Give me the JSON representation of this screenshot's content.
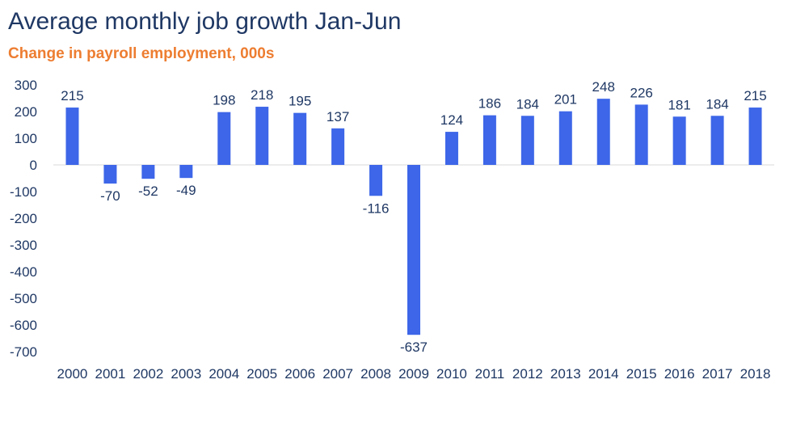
{
  "chart_data": {
    "type": "bar",
    "title": "Average monthly job growth Jan-Jun",
    "subtitle": "Change in payroll employment, 000s",
    "xlabel": "",
    "ylabel": "",
    "categories": [
      "2000",
      "2001",
      "2002",
      "2003",
      "2004",
      "2005",
      "2006",
      "2007",
      "2008",
      "2009",
      "2010",
      "2011",
      "2012",
      "2013",
      "2014",
      "2015",
      "2016",
      "2017",
      "2018"
    ],
    "values": [
      215,
      -70,
      -52,
      -49,
      198,
      218,
      195,
      137,
      -116,
      -637,
      124,
      186,
      184,
      201,
      248,
      226,
      181,
      184,
      215
    ],
    "data_labels": [
      "215",
      "-70",
      "-52",
      "-49",
      "198",
      "218",
      "195",
      "137",
      "-116",
      "-637",
      "124",
      "186",
      "184",
      "201",
      "248",
      "226",
      "181",
      "184",
      "215"
    ],
    "ylim": [
      -700,
      300
    ],
    "yticks": [
      300,
      200,
      100,
      0,
      -100,
      -200,
      -300,
      -400,
      -500,
      -600,
      -700
    ],
    "ytick_labels": [
      "300",
      "200",
      "100",
      "0",
      "-100",
      "-200",
      "-300",
      "-400",
      "-500",
      "-600",
      "-700"
    ],
    "grid": false,
    "legend": "none",
    "colors": {
      "bar": "#3d66e8",
      "title": "#1f3864",
      "subtitle": "#ed7d31",
      "text": "#1f3864",
      "axis": "#d9d9d9"
    }
  }
}
